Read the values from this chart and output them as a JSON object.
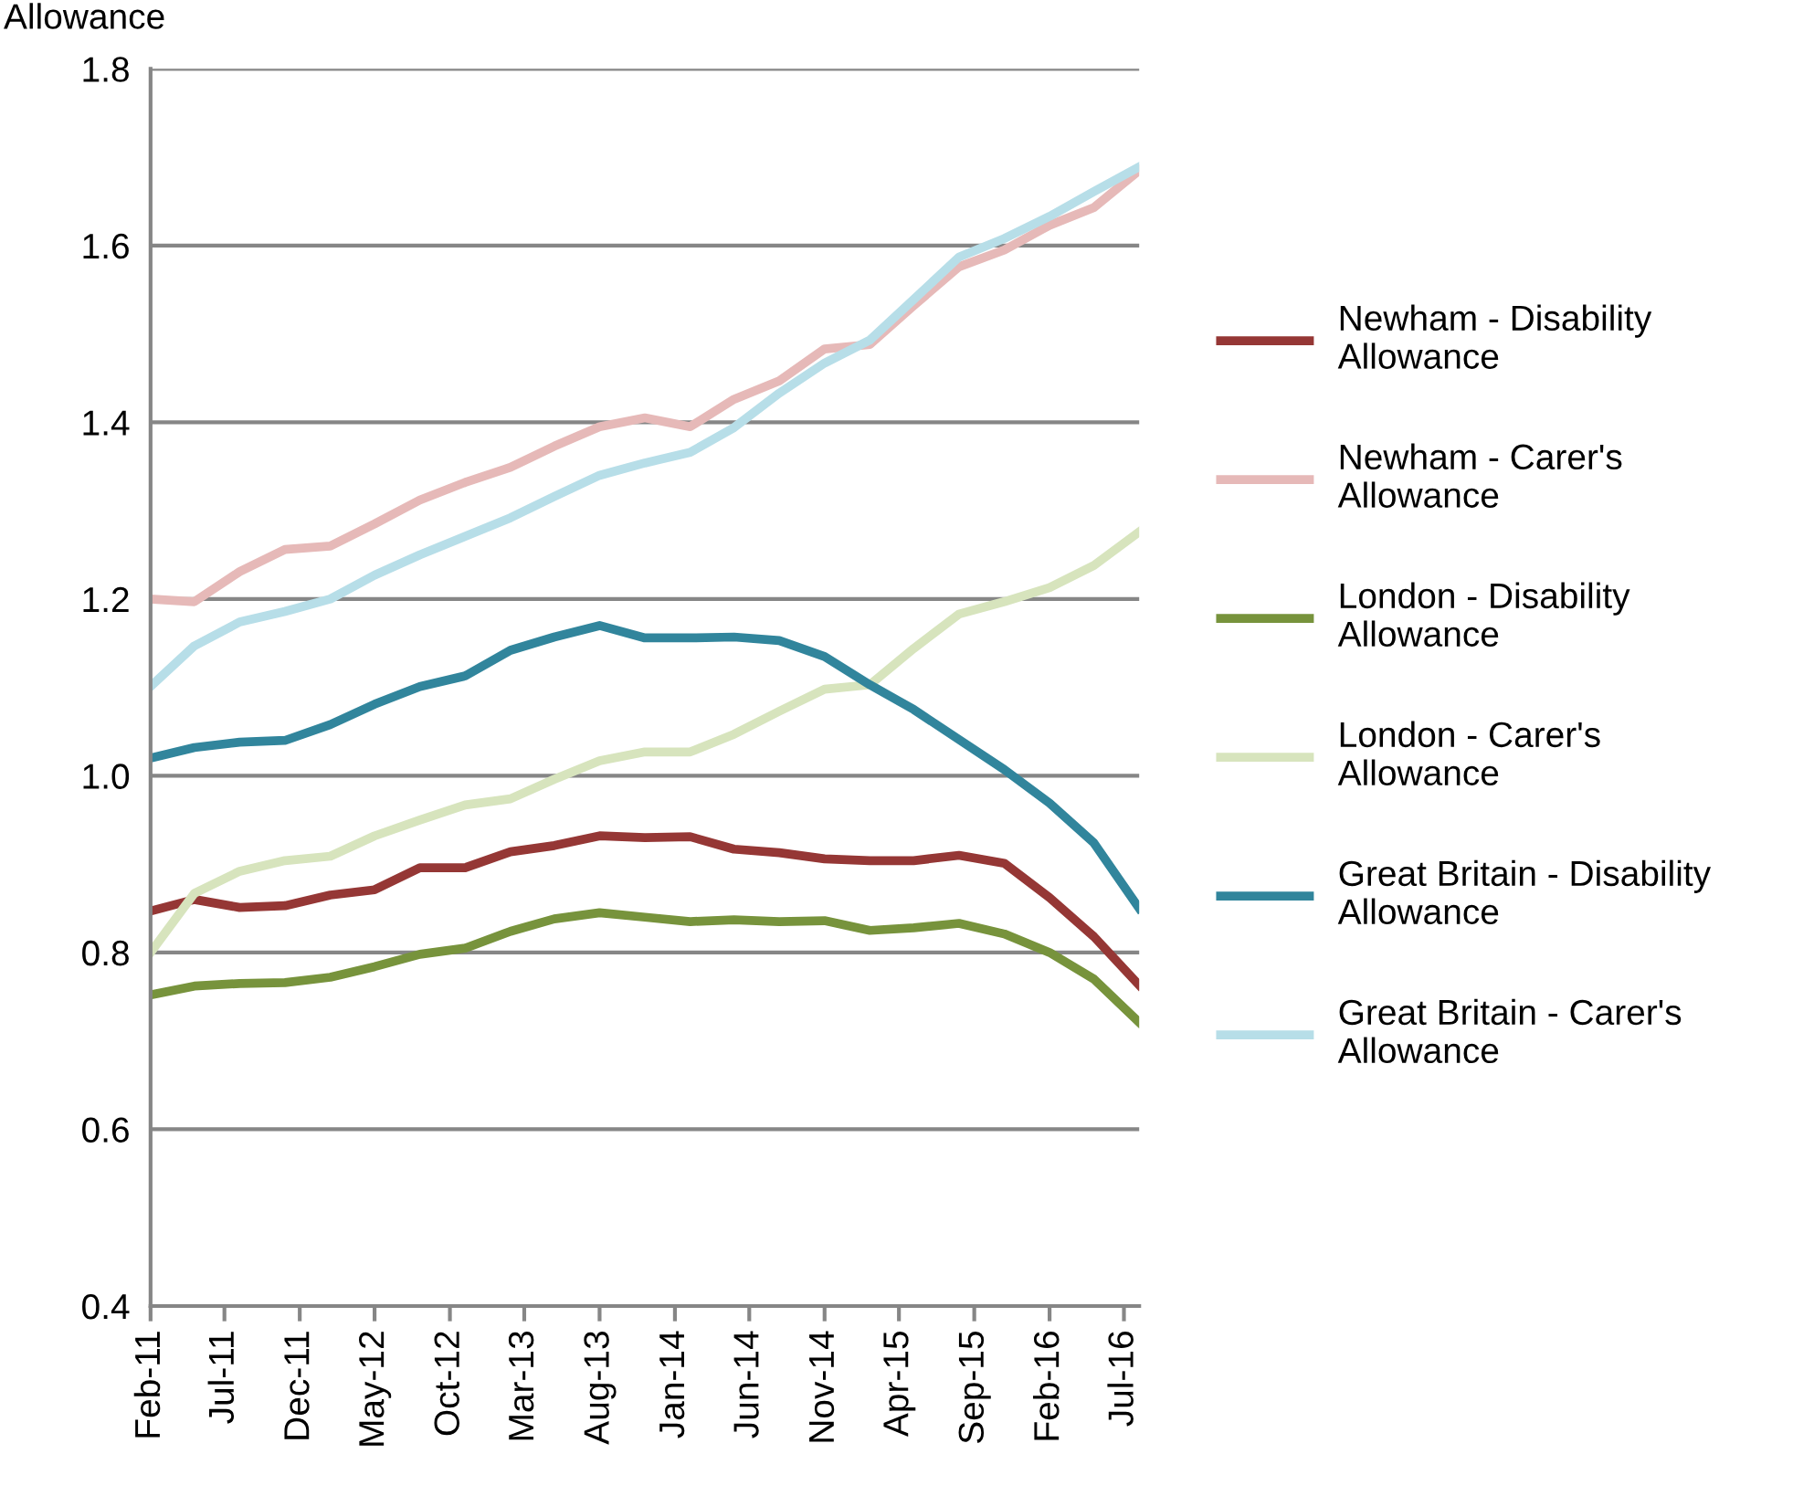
{
  "chart_data": {
    "type": "line",
    "title": "Allowance",
    "x": [
      "2011-02",
      "2011-05",
      "2011-08",
      "2011-11",
      "2012-02",
      "2012-05",
      "2012-08",
      "2012-11",
      "2013-02",
      "2013-05",
      "2013-08",
      "2013-11",
      "2014-02",
      "2014-05",
      "2014-08",
      "2014-11",
      "2015-02",
      "2015-05",
      "2015-08",
      "2015-11",
      "2016-02",
      "2016-05",
      "2016-08"
    ],
    "series": [
      {
        "name": "Newham - Disability Allowance",
        "color": "#953735",
        "values": [
          0.847,
          0.86,
          0.851,
          0.853,
          0.865,
          0.871,
          0.896,
          0.896,
          0.914,
          0.921,
          0.932,
          0.93,
          0.931,
          0.917,
          0.913,
          0.906,
          0.904,
          0.904,
          0.91,
          0.901,
          0.862,
          0.818,
          0.763
        ]
      },
      {
        "name": "Newham - Carer's Allowance",
        "color": "#e6b9b8",
        "values": [
          1.2,
          1.197,
          1.231,
          1.256,
          1.26,
          1.285,
          1.312,
          1.332,
          1.349,
          1.373,
          1.395,
          1.405,
          1.395,
          1.426,
          1.447,
          1.483,
          1.488,
          1.532,
          1.576,
          1.595,
          1.623,
          1.643,
          1.685
        ]
      },
      {
        "name": "London - Disability Allowance",
        "color": "#77933c",
        "values": [
          0.752,
          0.762,
          0.765,
          0.766,
          0.772,
          0.784,
          0.798,
          0.805,
          0.824,
          0.838,
          0.845,
          0.84,
          0.835,
          0.837,
          0.835,
          0.836,
          0.825,
          0.828,
          0.833,
          0.821,
          0.8,
          0.77,
          0.721
        ]
      },
      {
        "name": "London - Carer's Allowance",
        "color": "#d7e4bd",
        "values": [
          0.8,
          0.867,
          0.892,
          0.904,
          0.909,
          0.932,
          0.95,
          0.967,
          0.974,
          0.996,
          1.017,
          1.027,
          1.027,
          1.047,
          1.073,
          1.098,
          1.103,
          1.144,
          1.183,
          1.197,
          1.213,
          1.238,
          1.276
        ]
      },
      {
        "name": "Great Britain - Disability Allowance",
        "color": "#31859c",
        "values": [
          1.02,
          1.032,
          1.038,
          1.04,
          1.058,
          1.081,
          1.101,
          1.113,
          1.142,
          1.157,
          1.17,
          1.156,
          1.156,
          1.157,
          1.153,
          1.135,
          1.103,
          1.075,
          1.041,
          1.007,
          0.969,
          0.924,
          0.85
        ]
      },
      {
        "name": "Great Britain - Carer's Allowance",
        "color": "#b7dee8",
        "values": [
          1.101,
          1.147,
          1.174,
          1.186,
          1.2,
          1.227,
          1.25,
          1.271,
          1.292,
          1.316,
          1.34,
          1.354,
          1.366,
          1.394,
          1.433,
          1.467,
          1.493,
          1.539,
          1.587,
          1.608,
          1.633,
          1.661,
          1.689
        ]
      }
    ],
    "xlim": [
      "2011-02",
      "2016-08"
    ],
    "xticks": [
      {
        "value": "2011-02",
        "label": "Feb-11"
      },
      {
        "value": "2011-07",
        "label": "Jul-11"
      },
      {
        "value": "2011-12",
        "label": "Dec-11"
      },
      {
        "value": "2012-05",
        "label": "May-12"
      },
      {
        "value": "2012-10",
        "label": "Oct-12"
      },
      {
        "value": "2013-03",
        "label": "Mar-13"
      },
      {
        "value": "2013-08",
        "label": "Aug-13"
      },
      {
        "value": "2014-01",
        "label": "Jan-14"
      },
      {
        "value": "2014-06",
        "label": "Jun-14"
      },
      {
        "value": "2014-11",
        "label": "Nov-14"
      },
      {
        "value": "2015-04",
        "label": "Apr-15"
      },
      {
        "value": "2015-09",
        "label": "Sep-15"
      },
      {
        "value": "2016-02",
        "label": "Feb-16"
      },
      {
        "value": "2016-07",
        "label": "Jul-16"
      }
    ],
    "ylim": [
      0.4,
      1.8
    ],
    "yticks": [
      {
        "value": 0.4,
        "label": "0.4"
      },
      {
        "value": 0.6,
        "label": "0.6"
      },
      {
        "value": 0.8,
        "label": "0.8"
      },
      {
        "value": 1.0,
        "label": "1.0"
      },
      {
        "value": 1.2,
        "label": "1.2"
      },
      {
        "value": 1.4,
        "label": "1.4"
      },
      {
        "value": 1.6,
        "label": "1.6"
      },
      {
        "value": 1.8,
        "label": "1.8"
      }
    ],
    "grid": "y",
    "legend": "right",
    "marker": "none",
    "line_style": "solid"
  }
}
